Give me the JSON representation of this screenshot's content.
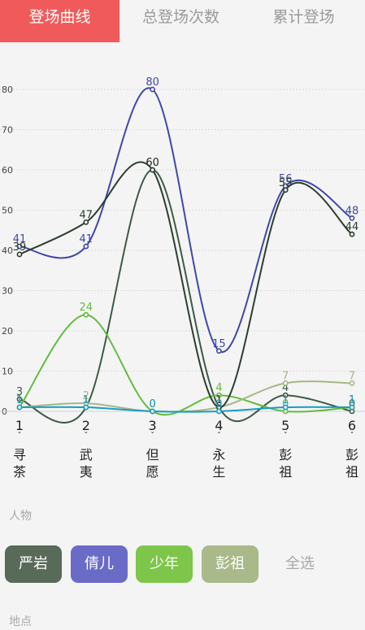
{
  "tabs": [
    {
      "label": "登场曲线",
      "active": true
    },
    {
      "label": "总登场次数",
      "active": false
    },
    {
      "label": "累计登场",
      "active": false
    }
  ],
  "chart_data": {
    "type": "line",
    "categories": [
      "1",
      "2",
      "3",
      "4",
      "5",
      "6"
    ],
    "category_sublabels": [
      "寻茶",
      "武夷",
      "但愿",
      "永生",
      "彭祖",
      "彭祖"
    ],
    "ylim": [
      0,
      80
    ],
    "yticks": [
      0,
      10,
      20,
      30,
      40,
      50,
      60,
      70,
      80
    ],
    "grid": true,
    "smooth": true,
    "series": [
      {
        "name": "严岩",
        "color": "#3d5a45",
        "values": [
          3,
          1,
          60,
          1,
          4,
          0
        ]
      },
      {
        "name": "倩儿",
        "color": "#3f48a6",
        "values": [
          41,
          41,
          80,
          15,
          56,
          48
        ]
      },
      {
        "name": "少年",
        "color": "#63bb3f",
        "values": [
          1,
          24,
          0,
          4,
          0,
          1
        ]
      },
      {
        "name": "彭祖",
        "color": "#a6b784",
        "values": [
          1,
          2,
          0,
          1,
          7,
          7
        ]
      },
      {
        "name": "",
        "color": "#2c3e2f",
        "values": [
          39,
          47,
          60,
          1,
          55,
          44
        ]
      },
      {
        "name": "",
        "color": "#1a9dc2",
        "values": [
          1,
          1,
          0,
          0,
          1,
          1
        ]
      }
    ]
  },
  "filters": {
    "people_label": "人物",
    "people": [
      {
        "label": "严岩",
        "color": "#586a58"
      },
      {
        "label": "倩儿",
        "color": "#6a6ac7"
      },
      {
        "label": "少年",
        "color": "#7dc649"
      },
      {
        "label": "彭祖",
        "color": "#a9b98a"
      }
    ],
    "all_label": "全选",
    "place_label": "地点"
  }
}
